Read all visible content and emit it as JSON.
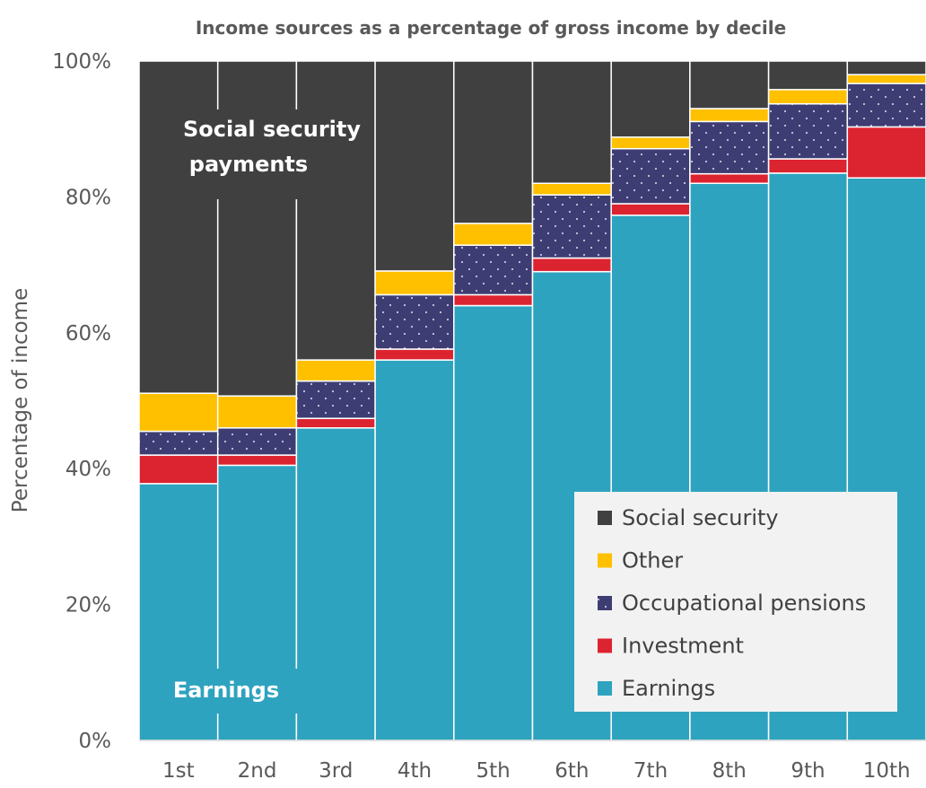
{
  "chart_data": {
    "type": "bar",
    "stacked": true,
    "title": "Income sources as a percentage of gross income by decile",
    "xlabel": "",
    "ylabel": "Percentage of income",
    "ylim": [
      0,
      100
    ],
    "yticks": [
      "0%",
      "20%",
      "40%",
      "60%",
      "80%",
      "100%"
    ],
    "categories": [
      "1st",
      "2nd",
      "3rd",
      "4th",
      "5th",
      "6th",
      "7th",
      "8th",
      "9th",
      "10th"
    ],
    "series": [
      {
        "name": "Earnings",
        "color": "#2ea3bf",
        "values": [
          37.8,
          40.5,
          46.0,
          56.0,
          64.0,
          69.0,
          77.3,
          82.0,
          83.5,
          82.8
        ]
      },
      {
        "name": "Investment",
        "color": "#dc2330",
        "values": [
          4.2,
          1.5,
          1.4,
          1.6,
          1.6,
          2.0,
          1.7,
          1.4,
          2.1,
          7.5
        ]
      },
      {
        "name": "Occupational pensions",
        "color": "#3d3d73",
        "pattern": "dots",
        "values": [
          3.5,
          4.0,
          5.5,
          8.0,
          7.3,
          9.3,
          8.1,
          7.7,
          8.1,
          6.4
        ]
      },
      {
        "name": "Other",
        "color": "#ffc000",
        "values": [
          5.6,
          4.7,
          3.1,
          3.5,
          3.2,
          1.7,
          1.7,
          1.9,
          2.1,
          1.3
        ]
      },
      {
        "name": "Social security",
        "color": "#404040",
        "values": [
          48.9,
          49.3,
          44.0,
          30.9,
          23.9,
          18.0,
          11.2,
          7.0,
          4.2,
          2.0
        ]
      }
    ],
    "legend": {
      "position": "bottom-right",
      "entries": [
        "Social security",
        "Other",
        "Occupational pensions",
        "Investment",
        "Earnings"
      ]
    },
    "annotations": [
      {
        "text_lines": [
          "Social security",
          "payments"
        ],
        "target": "Social security"
      },
      {
        "text_lines": [
          "Earnings"
        ],
        "target": "Earnings"
      }
    ],
    "grid": false
  }
}
